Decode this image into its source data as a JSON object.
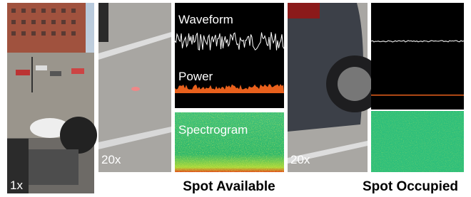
{
  "wide_view": {
    "zoom": "1x"
  },
  "spot_available": {
    "zoom": "20x",
    "waveform_label": "Waveform",
    "power_label": "Power",
    "spectrogram_label": "Spectrogram",
    "caption": "Spot Available"
  },
  "spot_occupied": {
    "zoom": "20x",
    "caption": "Spot Occupied"
  }
}
